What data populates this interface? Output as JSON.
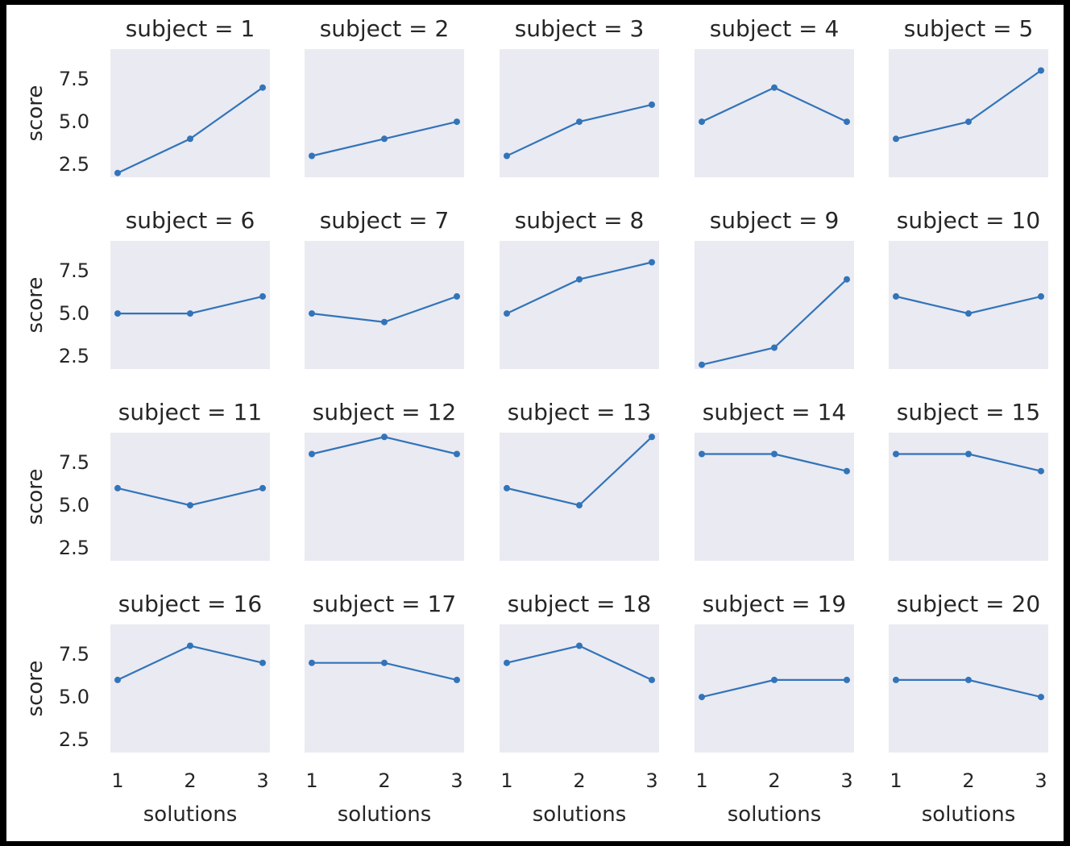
{
  "chart_data": {
    "type": "line",
    "layout": "facet-grid",
    "rows": 4,
    "cols": 5,
    "xlabel": "solutions",
    "ylabel": "score",
    "x": [
      1,
      2,
      3
    ],
    "x_ticks": [
      "1",
      "2",
      "3"
    ],
    "y_ticks": [
      "2.5",
      "5.0",
      "7.5"
    ],
    "y_tick_values": [
      2.5,
      5.0,
      7.5
    ],
    "ylim": [
      1.75,
      9.25
    ],
    "xlim": [
      0.9,
      3.1
    ],
    "grid": false,
    "color": "#3274b9",
    "panel_background": "#eaeaf2",
    "panels": [
      {
        "title": "subject = 1",
        "values": [
          2,
          4,
          7
        ]
      },
      {
        "title": "subject = 2",
        "values": [
          3,
          4,
          5
        ]
      },
      {
        "title": "subject = 3",
        "values": [
          3,
          5,
          6
        ]
      },
      {
        "title": "subject = 4",
        "values": [
          5,
          7,
          5
        ]
      },
      {
        "title": "subject = 5",
        "values": [
          4,
          5,
          8
        ]
      },
      {
        "title": "subject = 6",
        "values": [
          5,
          5,
          6
        ]
      },
      {
        "title": "subject = 7",
        "values": [
          5,
          4.5,
          6
        ]
      },
      {
        "title": "subject = 8",
        "values": [
          5,
          7,
          8
        ]
      },
      {
        "title": "subject = 9",
        "values": [
          2,
          3,
          7
        ]
      },
      {
        "title": "subject = 10",
        "values": [
          6,
          5,
          6
        ]
      },
      {
        "title": "subject = 11",
        "values": [
          6,
          5,
          6
        ]
      },
      {
        "title": "subject = 12",
        "values": [
          8,
          9,
          8
        ]
      },
      {
        "title": "subject = 13",
        "values": [
          6,
          5,
          9
        ]
      },
      {
        "title": "subject = 14",
        "values": [
          8,
          8,
          7
        ]
      },
      {
        "title": "subject = 15",
        "values": [
          8,
          8,
          7
        ]
      },
      {
        "title": "subject = 16",
        "values": [
          6,
          8,
          7
        ]
      },
      {
        "title": "subject = 17",
        "values": [
          7,
          7,
          6
        ]
      },
      {
        "title": "subject = 18",
        "values": [
          7,
          8,
          6
        ]
      },
      {
        "title": "subject = 19",
        "values": [
          5,
          6,
          6
        ]
      },
      {
        "title": "subject = 20",
        "values": [
          6,
          6,
          5
        ]
      }
    ]
  }
}
